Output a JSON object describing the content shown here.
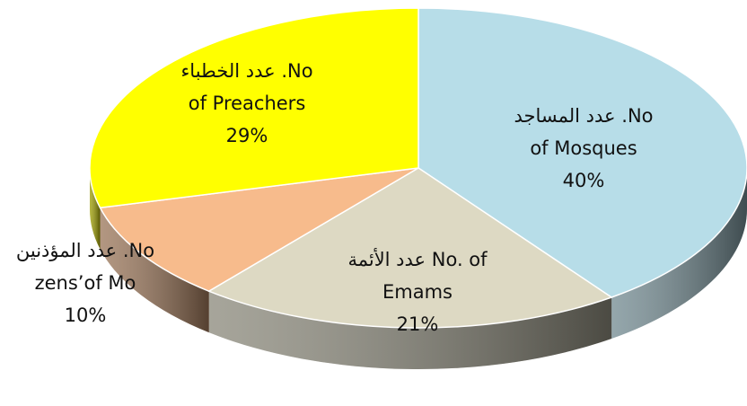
{
  "chart_data": {
    "type": "pie3d",
    "categories": [
      [
        "No. عدد المساجد",
        "of Mosques"
      ],
      [
        "No. of عدد الأئمة",
        "Emams"
      ],
      [
        "No. عدد المؤذنين",
        "zens’of Mo"
      ],
      [
        "No. عدد الخطباء",
        "of Preachers"
      ]
    ],
    "values": [
      40,
      21,
      10,
      29
    ],
    "value_labels": [
      "40%",
      "21%",
      "10%",
      "29%"
    ],
    "colors": [
      "#b7dde8",
      "#ddd9c3",
      "#f7bb8c",
      "#ffff00"
    ]
  }
}
